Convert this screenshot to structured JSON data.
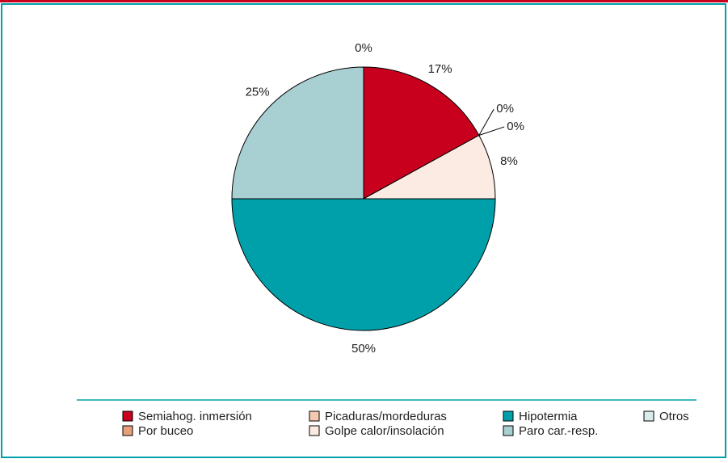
{
  "chart_data": {
    "type": "pie",
    "categories": [
      "Semiahog. inmersión",
      "Por buceo",
      "Picaduras/mordeduras",
      "Golpe calor/insolación",
      "Hipotermia",
      "Paro car.-resp.",
      "Otros"
    ],
    "values": [
      17,
      0,
      0,
      8,
      50,
      25,
      0
    ],
    "value_labels": [
      "17%",
      "0%",
      "0%",
      "8%",
      "50%",
      "25%",
      "0%"
    ],
    "colors": [
      "#c8001e",
      "#e8a07a",
      "#f5c9b0",
      "#fbebe2",
      "#00a0aa",
      "#a8d0d2",
      "#d8ecec"
    ]
  }
}
